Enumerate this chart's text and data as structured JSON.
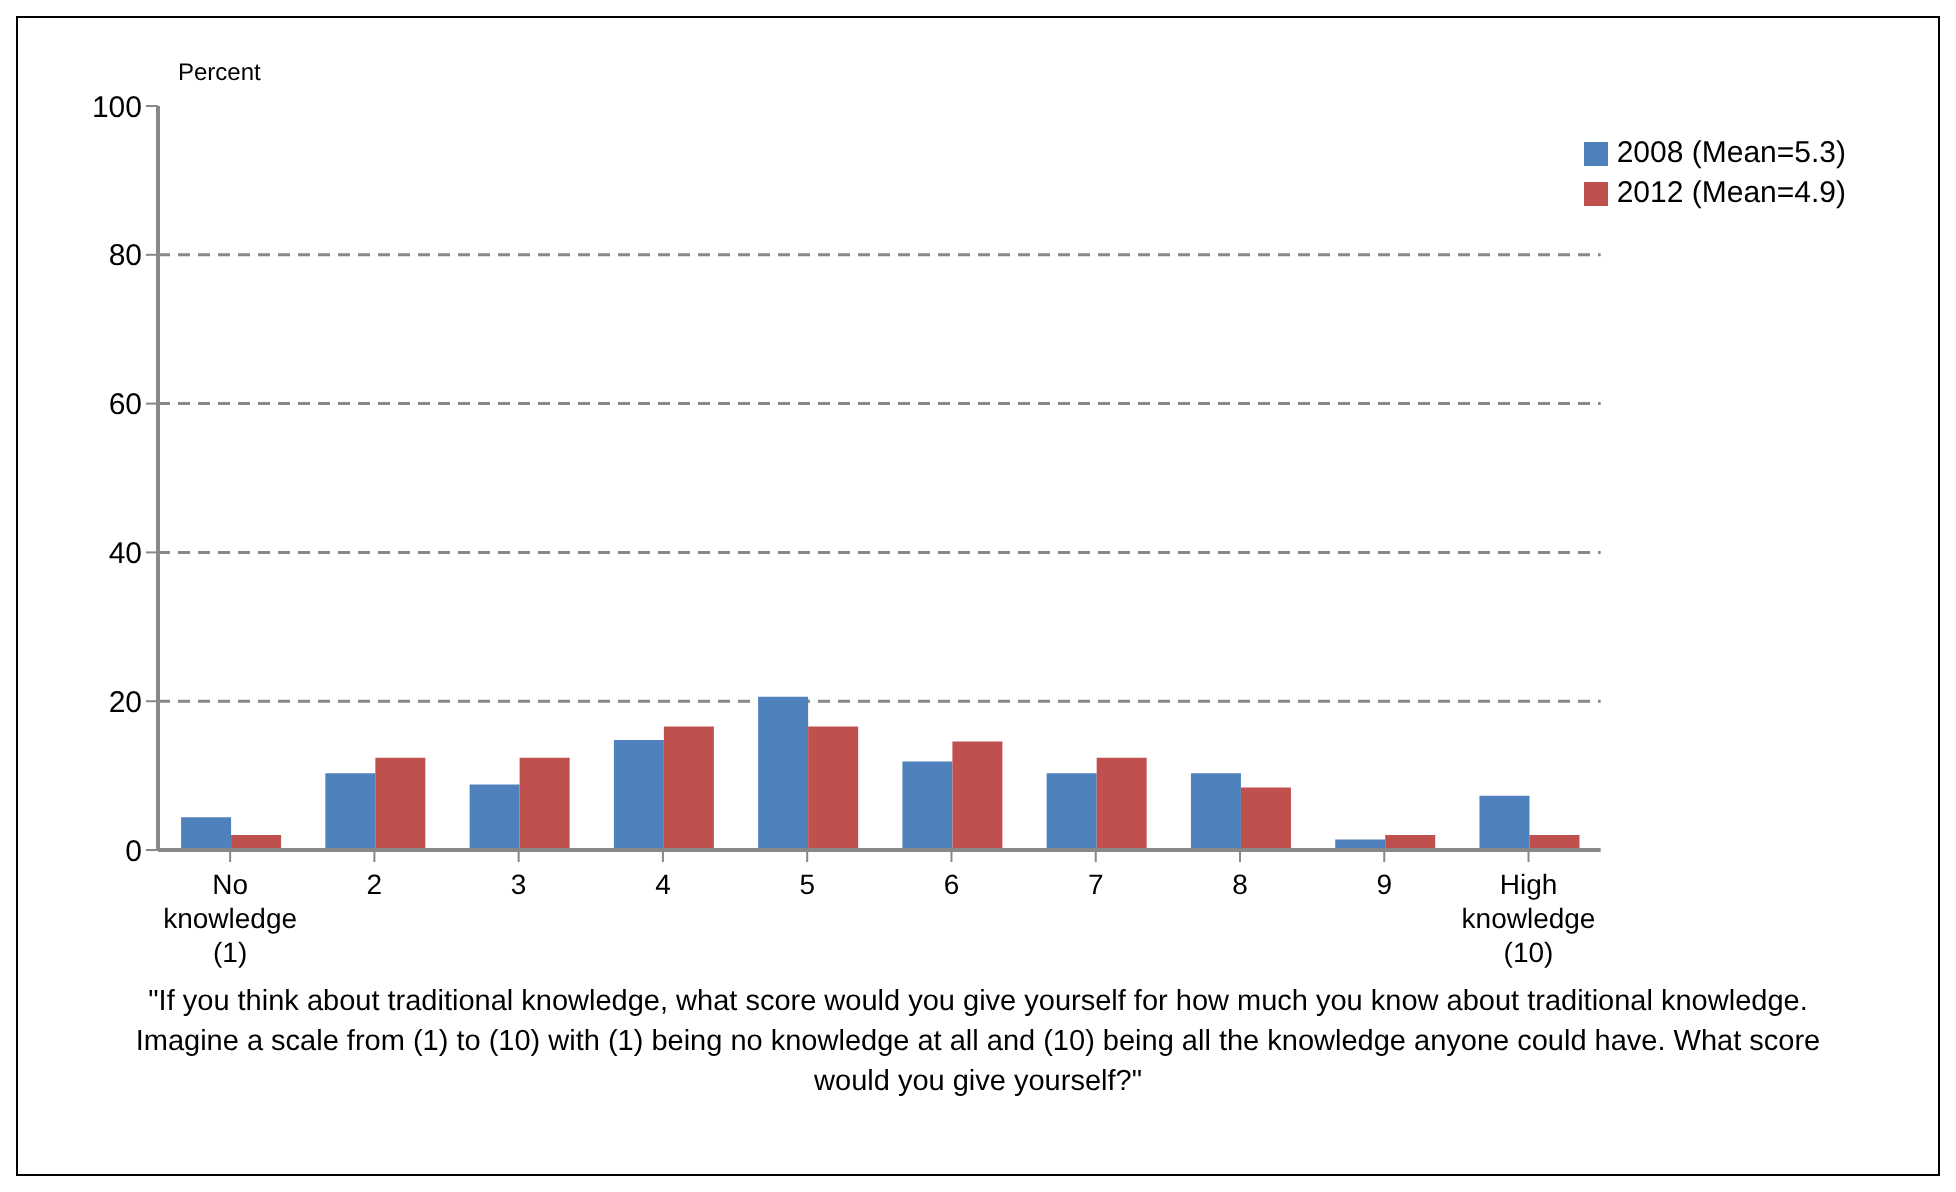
{
  "chart_data": {
    "type": "bar",
    "ylabel": "Percent",
    "categories": [
      "No knowledge (1)",
      "2",
      "3",
      "4",
      "5",
      "6",
      "7",
      "8",
      "9",
      "High knowledge (10)"
    ],
    "series": [
      {
        "name": "2008 (Mean=5.3)",
        "color": "#4f81bd",
        "values": [
          4.4,
          10.3,
          8.8,
          14.8,
          20.6,
          11.9,
          10.3,
          10.3,
          1.4,
          7.3
        ]
      },
      {
        "name": "2012 (Mean=4.9)",
        "color": "#c0504d",
        "values": [
          2.0,
          12.4,
          12.4,
          16.6,
          16.6,
          14.6,
          12.4,
          8.4,
          2.0,
          2.0
        ]
      }
    ],
    "ylim": [
      0,
      100
    ],
    "yticks": [
      0,
      20,
      40,
      60,
      80,
      100
    ],
    "grid": "y",
    "legend": "top right",
    "annotations": [
      "\"If you think about traditional knowledge,  what score would you give yourself for how much you know about traditional knowledge. Imagine a scale from (1) to (10)  with (1) being no knowledge at all and (10) being all the knowledge anyone could have. What score would you give  yourself?\""
    ]
  }
}
